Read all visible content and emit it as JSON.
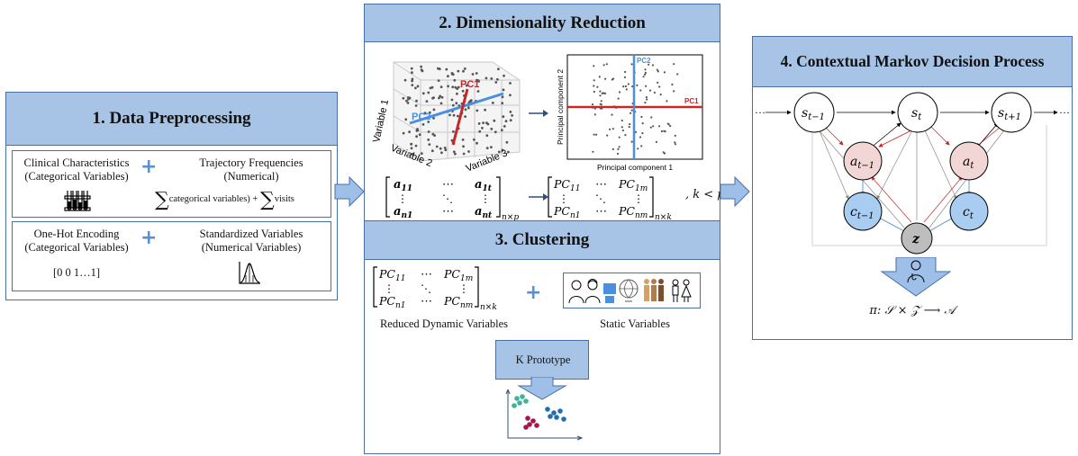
{
  "panels": {
    "p1": {
      "title": "1. Data Preprocessing",
      "clinical_line1": "Clinical Characteristics",
      "clinical_line2": "(Categorical Variables)",
      "traj_line1": "Trajectory Frequencies",
      "traj_line2": "(Numerical)",
      "traj_formula_a": "categorical variables) +",
      "traj_formula_b": "visits",
      "onehot_line1": "One-Hot Encoding",
      "onehot_line2": "(Categorical Variables)",
      "onehot_example": "[0 0 1…1]",
      "std_line1": "Standardized Variables",
      "std_line2": "(Numerical Variables)"
    },
    "p2": {
      "title": "2. Dimensionality Reduction",
      "var1": "Variable 1",
      "var2": "Variable 2",
      "var3": "Variable 3",
      "pc1": "PC1",
      "pc2": "PC2",
      "pc_axis_x": "Principal component 1",
      "pc_axis_y": "Principal component 2",
      "condition": ", k < p"
    },
    "p3": {
      "title": "3. Clustering",
      "reduced_label": "Reduced Dynamic Variables",
      "static_label": "Static Variables",
      "kproto_label": "K Prototype"
    },
    "p4": {
      "title": "4. Contextual Markov Decision Process",
      "policy": "π: 𝒮 × 𝒵  ⟶ 𝒜"
    }
  },
  "colors": {
    "header": "#a7c4e6",
    "border": "#4a6fa5",
    "arrow": "#9ec0e8",
    "action_node": "#f2d6d6",
    "context_node": "#a9cdf0",
    "z_node": "#bdbdbd",
    "pc1": "#c62828",
    "pc2": "#4a90e2"
  }
}
